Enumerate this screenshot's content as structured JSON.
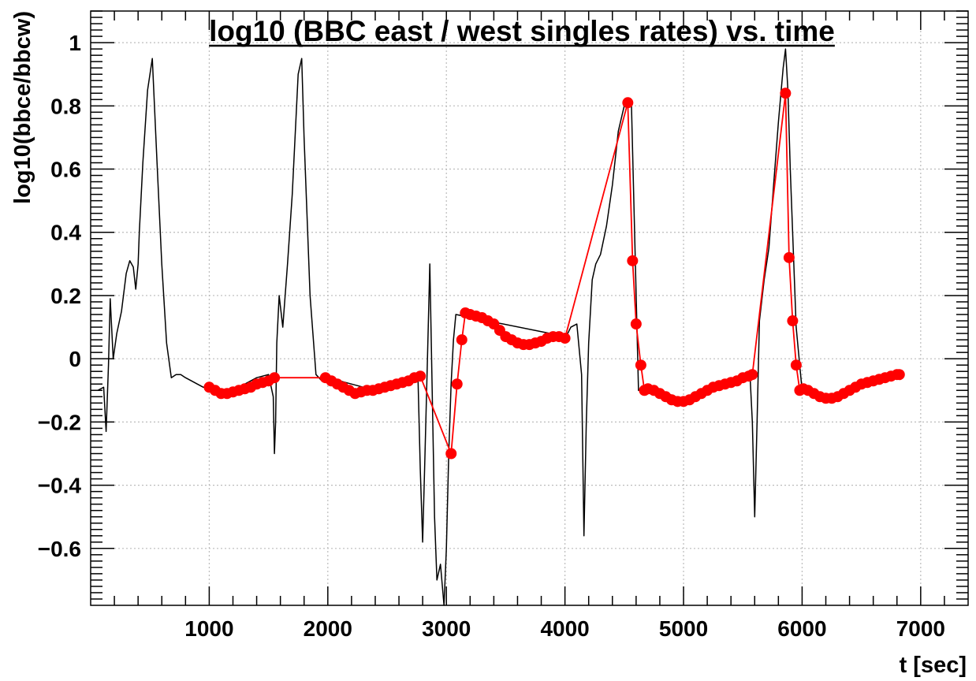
{
  "chart_data": {
    "type": "line",
    "title": "log10 (BBC east / west singles rates) vs. time",
    "xlabel": "t [sec]",
    "ylabel": "log10(bbce/bbcw)",
    "xlim": [
      0,
      7400
    ],
    "ylim": [
      -0.78,
      1.1
    ],
    "x_ticks": [
      1000,
      2000,
      3000,
      4000,
      5000,
      6000,
      7000
    ],
    "y_ticks": [
      -0.6,
      -0.4,
      -0.2,
      0,
      0.2,
      0.4,
      0.6,
      0.8,
      1
    ],
    "x_tick_labels": [
      "1000",
      "2000",
      "3000",
      "4000",
      "5000",
      "6000",
      "7000"
    ],
    "y_tick_labels": [
      "−0.6",
      "−0.4",
      "−0.2",
      "0",
      "0.2",
      "0.4",
      "0.6",
      "0.8",
      "1"
    ],
    "grid": true,
    "series": [
      {
        "color": "#000000",
        "style": "line",
        "x": [
          0,
          60,
          110,
          130,
          150,
          165,
          190,
          220,
          260,
          300,
          330,
          360,
          380,
          400,
          410,
          440,
          480,
          520,
          560,
          600,
          640,
          680,
          720,
          760,
          800,
          850,
          900,
          950,
          1000,
          1050,
          1200,
          1300,
          1400,
          1500,
          1540,
          1550,
          1560,
          1570,
          1590,
          1620,
          1660,
          1700,
          1750,
          1780,
          1800,
          1850,
          1900,
          1950,
          1980,
          2000,
          2400,
          2700,
          2760,
          2780,
          2800,
          2820,
          2840,
          2860,
          2880,
          2900,
          2920,
          2950,
          2980,
          3000,
          3020,
          3040,
          3060,
          3080,
          4010,
          4050,
          4100,
          4140,
          4160,
          4180,
          4200,
          4230,
          4260,
          4300,
          4350,
          4400,
          4450,
          4500,
          4530,
          4560,
          4620,
          4700,
          4800,
          5000,
          5300,
          5500,
          5560,
          5580,
          5600,
          5620,
          5640,
          5680,
          5720,
          5760,
          5800,
          5840,
          5860,
          5880,
          5900,
          5950,
          6000,
          6050
        ],
        "y": [
          -0.1,
          -0.1,
          -0.09,
          -0.23,
          -0.02,
          0.19,
          0.0,
          0.08,
          0.15,
          0.27,
          0.31,
          0.29,
          0.22,
          0.3,
          0.4,
          0.62,
          0.85,
          0.95,
          0.62,
          0.3,
          0.05,
          -0.06,
          -0.05,
          -0.05,
          -0.06,
          -0.07,
          -0.08,
          -0.09,
          -0.09,
          -0.1,
          -0.1,
          -0.08,
          -0.06,
          -0.05,
          -0.12,
          -0.3,
          -0.2,
          0.05,
          0.2,
          0.1,
          0.3,
          0.52,
          0.9,
          0.95,
          0.7,
          0.2,
          -0.05,
          -0.07,
          -0.06,
          -0.06,
          -0.1,
          -0.06,
          -0.05,
          -0.35,
          -0.58,
          -0.3,
          0.0,
          0.3,
          -0.1,
          -0.5,
          -0.7,
          -0.65,
          -0.78,
          -0.6,
          -0.3,
          -0.08,
          0.06,
          0.14,
          0.07,
          0.1,
          0.11,
          -0.05,
          -0.56,
          -0.2,
          0.05,
          0.25,
          0.3,
          0.33,
          0.42,
          0.55,
          0.72,
          0.8,
          0.82,
          0.82,
          -0.1,
          -0.1,
          -0.1,
          -0.13,
          -0.08,
          -0.06,
          -0.05,
          -0.2,
          -0.5,
          -0.2,
          0.12,
          0.25,
          0.35,
          0.55,
          0.75,
          0.92,
          0.98,
          0.85,
          0.6,
          0.1,
          -0.1,
          -0.1
        ],
        "name": ""
      },
      {
        "color": "#ff0000",
        "style": "line+marker",
        "x": [
          1000,
          1050,
          1100,
          1150,
          1200,
          1250,
          1300,
          1350,
          1400,
          1450,
          1500,
          1550,
          1980,
          2030,
          2080,
          2130,
          2180,
          2230,
          2280,
          2330,
          2380,
          2430,
          2480,
          2530,
          2580,
          2630,
          2680,
          2730,
          2780,
          3040,
          3090,
          3130,
          3160,
          3200,
          3250,
          3300,
          3350,
          3400,
          3450,
          3500,
          3550,
          3600,
          3650,
          3700,
          3750,
          3800,
          3850,
          3900,
          3950,
          4000,
          4530,
          4570,
          4600,
          4640,
          4670,
          4700,
          4750,
          4800,
          4850,
          4900,
          4950,
          5000,
          5050,
          5100,
          5150,
          5200,
          5250,
          5300,
          5350,
          5400,
          5450,
          5500,
          5550,
          5580,
          5860,
          5890,
          5920,
          5950,
          5980,
          6010,
          6050,
          6100,
          6150,
          6200,
          6250,
          6300,
          6350,
          6400,
          6450,
          6500,
          6550,
          6600,
          6650,
          6700,
          6750,
          6800,
          6820
        ],
        "y": [
          -0.09,
          -0.1,
          -0.11,
          -0.11,
          -0.105,
          -0.1,
          -0.095,
          -0.09,
          -0.08,
          -0.075,
          -0.07,
          -0.06,
          -0.06,
          -0.07,
          -0.08,
          -0.09,
          -0.1,
          -0.11,
          -0.105,
          -0.1,
          -0.1,
          -0.095,
          -0.09,
          -0.085,
          -0.08,
          -0.075,
          -0.07,
          -0.06,
          -0.055,
          -0.3,
          -0.08,
          0.06,
          0.145,
          0.14,
          0.135,
          0.13,
          0.12,
          0.11,
          0.09,
          0.07,
          0.06,
          0.05,
          0.045,
          0.045,
          0.05,
          0.055,
          0.065,
          0.07,
          0.07,
          0.065,
          0.81,
          0.31,
          0.11,
          -0.02,
          -0.1,
          -0.095,
          -0.1,
          -0.11,
          -0.12,
          -0.13,
          -0.135,
          -0.135,
          -0.13,
          -0.12,
          -0.11,
          -0.1,
          -0.09,
          -0.085,
          -0.08,
          -0.075,
          -0.07,
          -0.06,
          -0.055,
          -0.05,
          0.84,
          0.32,
          0.12,
          -0.02,
          -0.1,
          -0.095,
          -0.1,
          -0.11,
          -0.12,
          -0.125,
          -0.125,
          -0.12,
          -0.11,
          -0.1,
          -0.09,
          -0.08,
          -0.075,
          -0.07,
          -0.065,
          -0.06,
          -0.055,
          -0.05,
          -0.05
        ],
        "name": ""
      }
    ]
  }
}
